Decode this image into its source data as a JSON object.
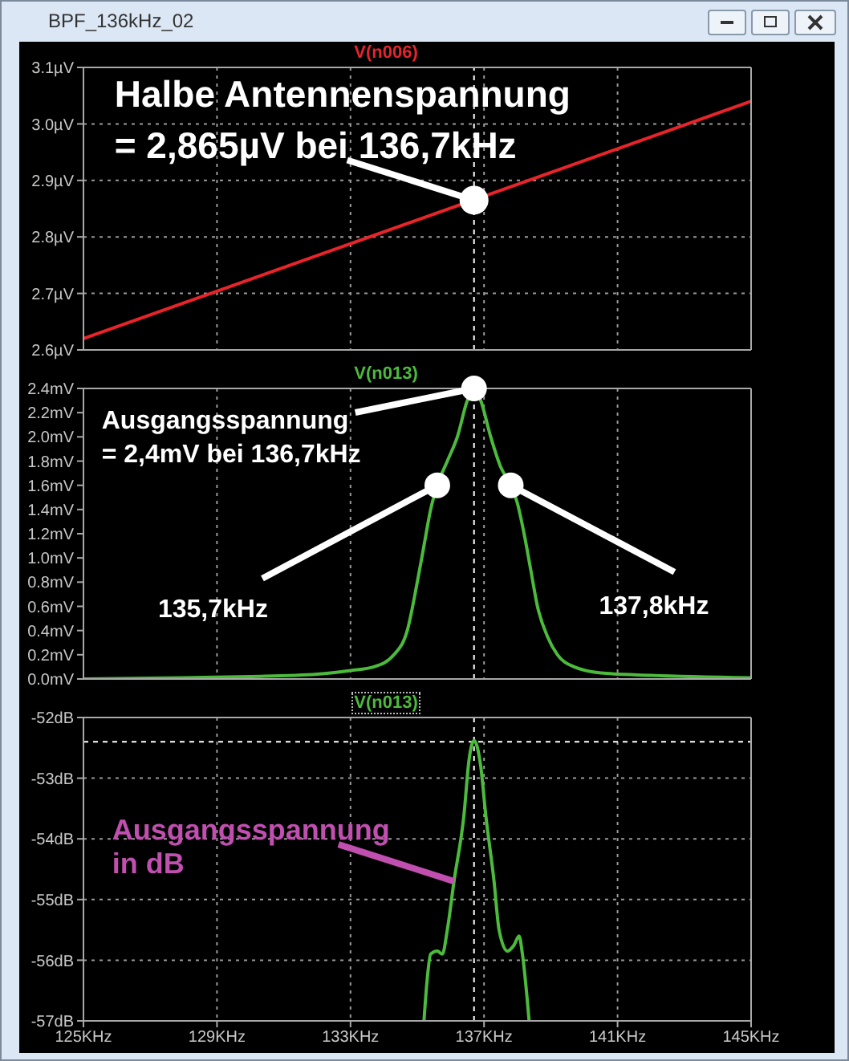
{
  "chart_data": [
    {
      "type": "line",
      "title": "BPF_136kHz_02",
      "legend": "top",
      "grid": true,
      "tick_labels": "y",
      "x": [
        125,
        145
      ],
      "series": [
        {
          "name": "V(n006)",
          "color": "#e8242a",
          "values": [
            2.62,
            3.04
          ]
        }
      ],
      "xlim": [
        125,
        145
      ],
      "xticks": [
        125,
        129,
        133,
        137,
        141,
        145
      ],
      "ylim": [
        2.6,
        3.1
      ],
      "yticks": [
        {
          "value": 2.6,
          "label": "2.6µV"
        },
        {
          "value": 2.7,
          "label": "2.7µV"
        },
        {
          "value": 2.8,
          "label": "2.8µV"
        },
        {
          "value": 2.9,
          "label": "2.9µV"
        },
        {
          "value": 3.0,
          "label": "3.0µV"
        },
        {
          "value": 3.1,
          "label": "3.1µV"
        }
      ],
      "ref_lines": [
        {
          "axis": "x",
          "value": 136.7,
          "color": "#ffffff",
          "line_style": "dashed"
        }
      ],
      "annotations": [
        {
          "text": "Halbe Antennenspannung\n= 2,865µV bei 136,7kHz",
          "x": 136.7,
          "y": 2.865
        }
      ]
    },
    {
      "type": "line",
      "legend": "top",
      "grid": "x",
      "tick_labels": "y",
      "x": [
        125,
        128,
        130,
        132,
        133,
        133.7,
        134.3,
        134.7,
        135.0,
        135.2,
        135.4,
        135.6,
        135.9,
        136.2,
        136.5,
        136.7,
        136.9,
        137.2,
        137.5,
        137.8,
        138.0,
        138.2,
        138.4,
        138.6,
        138.9,
        139.2,
        139.7,
        140.5,
        142,
        145
      ],
      "series": [
        {
          "name": "V(n013)",
          "color": "#4cbb3c",
          "values": [
            0.0,
            0.01,
            0.02,
            0.04,
            0.07,
            0.1,
            0.2,
            0.4,
            0.8,
            1.1,
            1.4,
            1.6,
            1.8,
            2.0,
            2.3,
            2.4,
            2.3,
            2.0,
            1.75,
            1.6,
            1.45,
            1.2,
            0.9,
            0.6,
            0.35,
            0.2,
            0.1,
            0.05,
            0.03,
            0.01
          ]
        }
      ],
      "xlim": [
        125,
        145
      ],
      "xticks": [
        125,
        129,
        133,
        137,
        141,
        145
      ],
      "ylim": [
        0,
        2.4
      ],
      "yticks": [
        {
          "value": 0,
          "label": "0.0mV"
        },
        {
          "value": 0.2,
          "label": "0.2mV"
        },
        {
          "value": 0.4,
          "label": "0.4mV"
        },
        {
          "value": 0.6,
          "label": "0.6mV"
        },
        {
          "value": 0.8,
          "label": "0.8mV"
        },
        {
          "value": 1.0,
          "label": "1.0mV"
        },
        {
          "value": 1.2,
          "label": "1.2mV"
        },
        {
          "value": 1.4,
          "label": "1.4mV"
        },
        {
          "value": 1.6,
          "label": "1.6mV"
        },
        {
          "value": 1.8,
          "label": "1.8mV"
        },
        {
          "value": 2.0,
          "label": "2.0mV"
        },
        {
          "value": 2.2,
          "label": "2.2mV"
        },
        {
          "value": 2.4,
          "label": "2.4mV"
        }
      ],
      "ref_lines": [
        {
          "axis": "x",
          "value": 136.7,
          "color": "#ffffff",
          "line_style": "dashed"
        }
      ],
      "annotations": [
        {
          "text": "Ausgangsspannung\n= 2,4mV bei 136,7kHz",
          "x": 136.7,
          "y": 2.4
        },
        {
          "text": "135,7kHz",
          "x": 135.6,
          "y": 1.6
        },
        {
          "text": "137,8kHz",
          "x": 137.8,
          "y": 1.6
        }
      ]
    },
    {
      "type": "line",
      "legend": "top",
      "grid": true,
      "x": [
        135.2,
        135.3,
        135.4,
        135.6,
        135.75,
        135.9,
        136.1,
        136.4,
        136.55,
        136.7,
        136.9,
        137.05,
        137.3,
        137.45,
        137.7,
        137.9,
        138.05,
        138.15,
        138.35
      ],
      "series": [
        {
          "name": "V(n013)",
          "color": "#4cbb3c",
          "values": [
            -57,
            -56.3,
            -55.9,
            -55.85,
            -55.9,
            -55.5,
            -54.7,
            -53.6,
            -52.7,
            -52.38,
            -52.8,
            -53.6,
            -54.7,
            -55.5,
            -55.85,
            -55.75,
            -55.6,
            -55.9,
            -57
          ]
        }
      ],
      "xlim": [
        125,
        145
      ],
      "xticks": [
        {
          "value": 125,
          "label": "125KHz"
        },
        {
          "value": 129,
          "label": "129KHz"
        },
        {
          "value": 133,
          "label": "133KHz"
        },
        {
          "value": 137,
          "label": "137KHz"
        },
        {
          "value": 141,
          "label": "141KHz"
        },
        {
          "value": 145,
          "label": "145KHz"
        }
      ],
      "ylim": [
        -57,
        -52
      ],
      "yticks": [
        {
          "value": -57,
          "label": "-57dB"
        },
        {
          "value": -56,
          "label": "-56dB"
        },
        {
          "value": -55,
          "label": "-55dB"
        },
        {
          "value": -54,
          "label": "-54dB"
        },
        {
          "value": -53,
          "label": "-53dB"
        },
        {
          "value": -52,
          "label": "-52dB"
        }
      ],
      "ref_lines": [
        {
          "axis": "x",
          "value": 136.7,
          "color": "#ffffff",
          "line_style": "dashed"
        },
        {
          "axis": "y",
          "value": -52.4,
          "color": "#ffffff",
          "line_style": "dashed"
        }
      ],
      "annotations": [
        {
          "text": "Ausgangsspannung\nin dB",
          "x": 136.1,
          "y": -54.7
        }
      ]
    }
  ]
}
